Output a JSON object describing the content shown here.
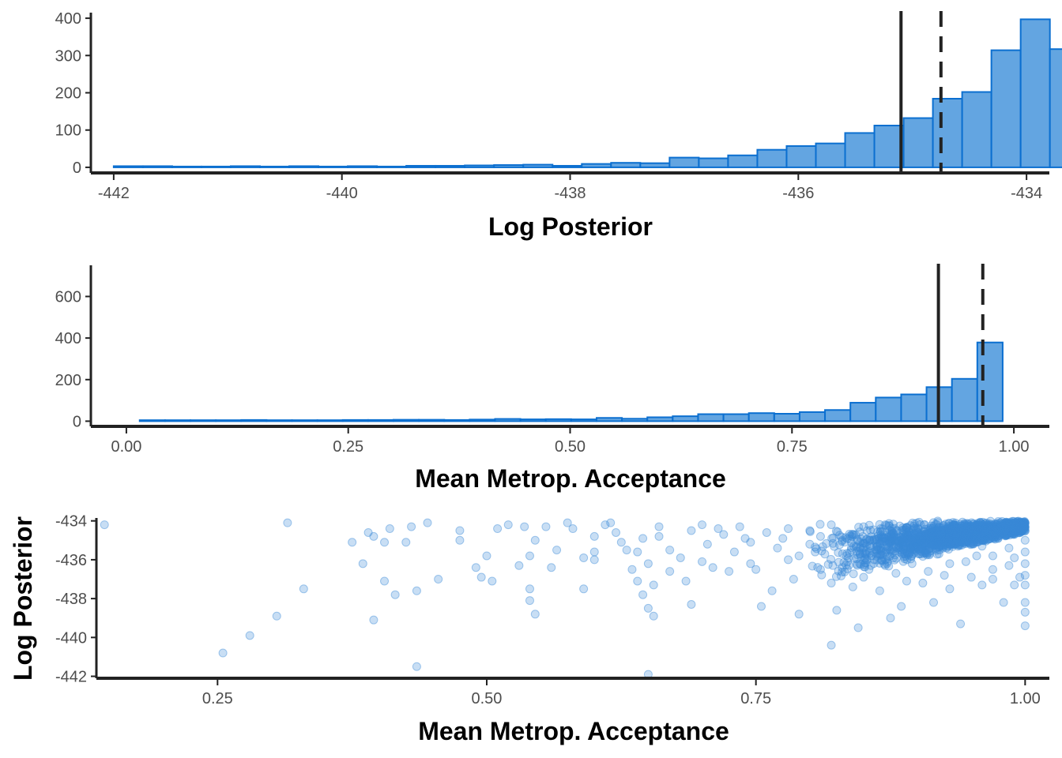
{
  "colors": {
    "fill": "#63a5e1",
    "stroke": "#0b6fd0",
    "point": "#3a8ad6",
    "axis": "#222222",
    "ref": "#222222"
  },
  "chart_data": [
    {
      "type": "bar",
      "kind": "histogram",
      "xlabel": "Log Posterior",
      "ylabel": "",
      "xlim": [
        -442.2,
        -433.8
      ],
      "ylim": [
        -15,
        415
      ],
      "xticks": [
        -442,
        -440,
        -438,
        -436,
        -434
      ],
      "xtick_labels": [
        "-442",
        "-440",
        "-438",
        "-436",
        "-434"
      ],
      "yticks": [
        0,
        100,
        200,
        300,
        400
      ],
      "ytick_labels": [
        "0",
        "100",
        "200",
        "300",
        "400"
      ],
      "bin_start": -442.0,
      "bin_width": 0.2564,
      "values": [
        1,
        1,
        0,
        0,
        1,
        0,
        1,
        0,
        1,
        0,
        2,
        2,
        3,
        4,
        5,
        2,
        7,
        10,
        9,
        24,
        22,
        30,
        45,
        55,
        62,
        90,
        110,
        130,
        182,
        200,
        312,
        395,
        315
      ],
      "vlines": [
        {
          "x": -435.1,
          "style": "solid"
        },
        {
          "x": -434.75,
          "style": "dashed"
        }
      ],
      "grid": false,
      "legend": "none"
    },
    {
      "type": "bar",
      "kind": "histogram",
      "xlabel": "Mean Metrop. Acceptance",
      "ylabel": "",
      "xlim": [
        -0.04,
        1.04
      ],
      "ylim": [
        -25,
        750
      ],
      "xticks": [
        0.0,
        0.25,
        0.5,
        0.75,
        1.0
      ],
      "xtick_labels": [
        "0.00",
        "0.25",
        "0.50",
        "0.75",
        "1.00"
      ],
      "yticks": [
        0,
        200,
        400,
        600
      ],
      "ytick_labels": [
        "0",
        "200",
        "400",
        "600"
      ],
      "bin_start": 0.015,
      "bin_width": 0.0286,
      "values": [
        1,
        1,
        1,
        1,
        2,
        1,
        1,
        1,
        2,
        2,
        3,
        3,
        2,
        4,
        7,
        5,
        6,
        5,
        12,
        8,
        15,
        20,
        30,
        30,
        35,
        32,
        40,
        50,
        85,
        110,
        125,
        160,
        200,
        375
      ],
      "vlines": [
        {
          "x": 0.915,
          "style": "solid"
        },
        {
          "x": 0.965,
          "style": "dashed"
        }
      ],
      "grid": false,
      "legend": "none"
    },
    {
      "type": "scatter",
      "xlabel": "Mean Metrop. Acceptance",
      "ylabel": "Log Posterior",
      "xlim": [
        0.1375,
        1.0225
      ],
      "ylim": [
        -442.1,
        -433.85
      ],
      "xticks": [
        0.25,
        0.5,
        0.75,
        1.0
      ],
      "xtick_labels": [
        "0.25",
        "0.50",
        "0.75",
        "1.00"
      ],
      "yticks": [
        -434,
        -436,
        -438,
        -440,
        -442
      ],
      "ytick_labels": [
        "-434",
        "-436",
        "-438",
        "-440",
        "-442"
      ],
      "grid": false,
      "legend": "none",
      "points": [
        [
          0.145,
          -434.2
        ],
        [
          0.315,
          -434.1
        ],
        [
          0.375,
          -435.1
        ],
        [
          0.385,
          -436.2
        ],
        [
          0.33,
          -437.5
        ],
        [
          0.305,
          -438.9
        ],
        [
          0.28,
          -439.9
        ],
        [
          0.255,
          -440.8
        ],
        [
          0.435,
          -441.5
        ],
        [
          0.395,
          -439.1
        ],
        [
          0.435,
          -437.6
        ],
        [
          0.415,
          -437.8
        ],
        [
          0.455,
          -437.0
        ],
        [
          0.405,
          -437.1
        ],
        [
          0.39,
          -434.6
        ],
        [
          0.41,
          -434.4
        ],
        [
          0.395,
          -434.8
        ],
        [
          0.405,
          -435.1
        ],
        [
          0.425,
          -435.1
        ],
        [
          0.43,
          -434.3
        ],
        [
          0.445,
          -434.1
        ],
        [
          0.475,
          -434.5
        ],
        [
          0.475,
          -435.0
        ],
        [
          0.49,
          -436.4
        ],
        [
          0.5,
          -435.8
        ],
        [
          0.495,
          -436.9
        ],
        [
          0.505,
          -437.1
        ],
        [
          0.51,
          -434.4
        ],
        [
          0.52,
          -434.2
        ],
        [
          0.535,
          -434.3
        ],
        [
          0.545,
          -435.0
        ],
        [
          0.54,
          -435.8
        ],
        [
          0.53,
          -436.3
        ],
        [
          0.54,
          -437.5
        ],
        [
          0.54,
          -438.1
        ],
        [
          0.545,
          -438.8
        ],
        [
          0.56,
          -436.4
        ],
        [
          0.565,
          -435.5
        ],
        [
          0.575,
          -434.1
        ],
        [
          0.59,
          -435.9
        ],
        [
          0.6,
          -436.0
        ],
        [
          0.59,
          -437.5
        ],
        [
          0.6,
          -434.8
        ],
        [
          0.61,
          -434.2
        ],
        [
          0.615,
          -434.1
        ],
        [
          0.625,
          -435.1
        ],
        [
          0.63,
          -435.5
        ],
        [
          0.635,
          -436.5
        ],
        [
          0.64,
          -435.6
        ],
        [
          0.645,
          -434.9
        ],
        [
          0.65,
          -436.2
        ],
        [
          0.655,
          -437.3
        ],
        [
          0.64,
          -437.1
        ],
        [
          0.645,
          -437.8
        ],
        [
          0.65,
          -438.5
        ],
        [
          0.655,
          -438.9
        ],
        [
          0.65,
          -441.9
        ],
        [
          0.66,
          -434.3
        ],
        [
          0.67,
          -435.5
        ],
        [
          0.68,
          -435.9
        ],
        [
          0.685,
          -437.1
        ],
        [
          0.69,
          -438.3
        ],
        [
          0.7,
          -434.2
        ],
        [
          0.705,
          -435.2
        ],
        [
          0.71,
          -436.4
        ],
        [
          0.715,
          -434.4
        ],
        [
          0.72,
          -434.7
        ],
        [
          0.725,
          -436.6
        ],
        [
          0.735,
          -434.3
        ],
        [
          0.74,
          -434.9
        ],
        [
          0.745,
          -435.1
        ],
        [
          0.745,
          -436.2
        ],
        [
          0.755,
          -438.4
        ],
        [
          0.765,
          -437.6
        ],
        [
          0.775,
          -434.9
        ],
        [
          0.78,
          -436.0
        ],
        [
          0.785,
          -437.0
        ],
        [
          0.79,
          -438.8
        ],
        [
          0.8,
          -434.5
        ],
        [
          0.805,
          -435.6
        ],
        [
          0.81,
          -436.5
        ],
        [
          0.82,
          -434.2
        ],
        [
          0.82,
          -437.2
        ],
        [
          0.825,
          -438.6
        ],
        [
          0.83,
          -435.0
        ],
        [
          0.835,
          -436.1
        ],
        [
          0.84,
          -437.4
        ],
        [
          0.845,
          -439.5
        ],
        [
          0.85,
          -434.3
        ],
        [
          0.855,
          -436.5
        ],
        [
          0.86,
          -435.0
        ],
        [
          0.865,
          -437.6
        ],
        [
          0.87,
          -434.2
        ],
        [
          0.875,
          -435.5
        ],
        [
          0.88,
          -436.7
        ],
        [
          0.885,
          -438.4
        ],
        [
          0.89,
          -434.6
        ],
        [
          0.895,
          -436.2
        ],
        [
          0.9,
          -435.1
        ],
        [
          0.905,
          -437.2
        ],
        [
          0.91,
          -434.4
        ],
        [
          0.915,
          -438.2
        ],
        [
          0.92,
          -435.7
        ],
        [
          0.925,
          -436.8
        ],
        [
          0.93,
          -437.5
        ],
        [
          0.935,
          -434.5
        ],
        [
          0.94,
          -439.3
        ],
        [
          0.945,
          -436.1
        ],
        [
          0.95,
          -434.8
        ],
        [
          0.955,
          -435.8
        ],
        [
          0.96,
          -437.3
        ],
        [
          0.965,
          -434.3
        ],
        [
          0.97,
          -436.5
        ],
        [
          0.975,
          -434.9
        ],
        [
          0.98,
          -438.2
        ],
        [
          0.985,
          -435.4
        ],
        [
          0.99,
          -434.7
        ],
        [
          0.995,
          -436.9
        ],
        [
          1.0,
          -438.2
        ],
        [
          1.0,
          -438.7
        ],
        [
          1.0,
          -439.4
        ],
        [
          1.0,
          -437.3
        ],
        [
          0.82,
          -440.4
        ],
        [
          0.875,
          -439.0
        ],
        [
          0.84,
          -434.7
        ],
        [
          0.86,
          -435.6
        ],
        [
          0.87,
          -434.9
        ],
        [
          0.9,
          -434.6
        ],
        [
          0.92,
          -434.9
        ],
        [
          0.94,
          -435.1
        ],
        [
          0.96,
          -435.3
        ],
        [
          0.98,
          -434.4
        ],
        [
          0.99,
          -435.9
        ],
        [
          0.955,
          -434.2
        ],
        [
          0.97,
          -435.8
        ],
        [
          0.985,
          -436.3
        ],
        [
          0.995,
          -434.6
        ],
        [
          1.0,
          -434.1
        ],
        [
          1.0,
          -434.5
        ],
        [
          1.0,
          -435.0
        ],
        [
          1.0,
          -435.6
        ],
        [
          1.0,
          -436.2
        ],
        [
          1.0,
          -436.8
        ],
        [
          0.78,
          -434.4
        ],
        [
          0.8,
          -435.2
        ],
        [
          0.76,
          -434.6
        ],
        [
          0.73,
          -435.6
        ],
        [
          0.69,
          -434.5
        ],
        [
          0.66,
          -434.8
        ],
        [
          0.62,
          -434.6
        ],
        [
          0.6,
          -435.6
        ],
        [
          0.58,
          -434.4
        ],
        [
          0.555,
          -434.3
        ],
        [
          0.67,
          -436.6
        ],
        [
          0.7,
          -436.1
        ],
        [
          0.75,
          -436.5
        ],
        [
          0.77,
          -435.4
        ],
        [
          0.79,
          -435.8
        ],
        [
          0.81,
          -434.8
        ],
        [
          0.83,
          -436.4
        ],
        [
          0.85,
          -436.9
        ],
        [
          0.87,
          -436.3
        ],
        [
          0.89,
          -437.1
        ],
        [
          0.91,
          -436.6
        ],
        [
          0.93,
          -436.2
        ],
        [
          0.95,
          -436.9
        ],
        [
          0.97,
          -437.0
        ],
        [
          0.99,
          -437.3
        ]
      ],
      "dense_region": {
        "x_min": 0.8,
        "x_max": 1.0,
        "y_min": -436.0,
        "y_max": -434.0,
        "count": 1800
      }
    }
  ]
}
